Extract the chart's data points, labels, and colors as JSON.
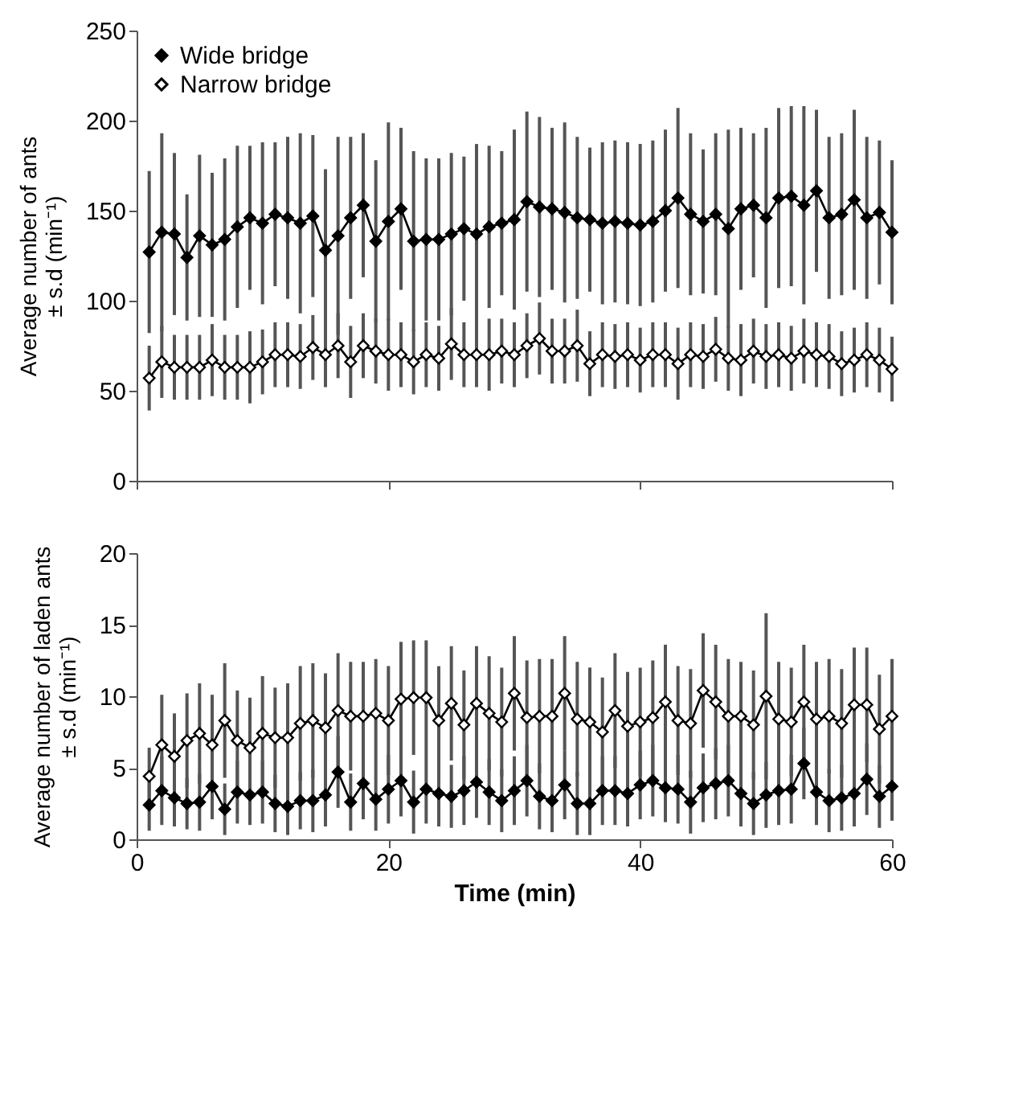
{
  "chart_data": [
    {
      "type": "line",
      "ylabel": "Average number of ants\n± s.d (min⁻¹)",
      "x": [
        1,
        2,
        3,
        4,
        5,
        6,
        7,
        8,
        9,
        10,
        11,
        12,
        13,
        14,
        15,
        16,
        17,
        18,
        19,
        20,
        21,
        22,
        23,
        24,
        25,
        26,
        27,
        28,
        29,
        30,
        31,
        32,
        33,
        34,
        35,
        36,
        37,
        38,
        39,
        40,
        41,
        42,
        43,
        44,
        45,
        46,
        47,
        48,
        49,
        50,
        51,
        52,
        53,
        54,
        55,
        56,
        57,
        58,
        59,
        60
      ],
      "xlim": [
        0,
        60
      ],
      "xticks": [
        0,
        20,
        40,
        60
      ],
      "ylim": [
        0,
        250
      ],
      "yticks": [
        0,
        50,
        100,
        150,
        200,
        250
      ],
      "tick_labels": "y",
      "grid": false,
      "legend": "top left",
      "marker": "diamond",
      "line_style": "solid",
      "series": [
        {
          "name": "Wide bridge",
          "color": "#000000",
          "values": [
            127,
            138,
            137,
            124,
            136,
            131,
            134,
            141,
            146,
            143,
            148,
            146,
            143,
            147,
            128,
            136,
            146,
            153,
            133,
            144,
            151,
            133,
            134,
            134,
            137,
            140,
            137,
            141,
            143,
            145,
            155,
            152,
            151,
            149,
            146,
            145,
            143,
            144,
            143,
            142,
            144,
            150,
            157,
            148,
            144,
            148,
            140,
            151,
            153,
            146,
            157,
            158,
            153,
            161,
            146,
            148,
            156,
            146,
            149,
            138
          ],
          "errors": [
            45,
            55,
            45,
            35,
            45,
            40,
            45,
            45,
            40,
            45,
            40,
            45,
            50,
            45,
            45,
            55,
            45,
            40,
            45,
            55,
            45,
            50,
            45,
            45,
            45,
            40,
            50,
            45,
            40,
            50,
            50,
            50,
            45,
            50,
            45,
            40,
            45,
            45,
            45,
            45,
            45,
            45,
            50,
            45,
            40,
            45,
            55,
            45,
            40,
            50,
            50,
            50,
            55,
            45,
            45,
            45,
            50,
            45,
            40,
            40
          ]
        },
        {
          "name": "Narrow bridge",
          "color": "#000000",
          "values": [
            57,
            66,
            63,
            63,
            63,
            67,
            63,
            63,
            63,
            66,
            70,
            70,
            69,
            74,
            70,
            75,
            66,
            75,
            72,
            70,
            70,
            66,
            70,
            68,
            76,
            70,
            70,
            70,
            72,
            70,
            75,
            79,
            72,
            72,
            75,
            65,
            70,
            69,
            70,
            67,
            70,
            70,
            65,
            70,
            69,
            73,
            68,
            67,
            72,
            69,
            70,
            68,
            72,
            70,
            69,
            65,
            67,
            70,
            67,
            62
          ],
          "errors": [
            18,
            20,
            18,
            18,
            18,
            20,
            18,
            18,
            20,
            18,
            18,
            18,
            18,
            18,
            18,
            18,
            20,
            18,
            18,
            20,
            18,
            18,
            18,
            18,
            20,
            18,
            18,
            20,
            18,
            18,
            18,
            20,
            18,
            18,
            20,
            18,
            18,
            18,
            18,
            18,
            18,
            18,
            20,
            18,
            18,
            18,
            18,
            20,
            18,
            18,
            18,
            18,
            18,
            18,
            18,
            18,
            18,
            18,
            18,
            18
          ]
        }
      ]
    },
    {
      "type": "line",
      "ylabel": "Average number of laden ants\n± s.d (min⁻¹)",
      "xlabel": "Time (min)",
      "x": [
        1,
        2,
        3,
        4,
        5,
        6,
        7,
        8,
        9,
        10,
        11,
        12,
        13,
        14,
        15,
        16,
        17,
        18,
        19,
        20,
        21,
        22,
        23,
        24,
        25,
        26,
        27,
        28,
        29,
        30,
        31,
        32,
        33,
        34,
        35,
        36,
        37,
        38,
        39,
        40,
        41,
        42,
        43,
        44,
        45,
        46,
        47,
        48,
        49,
        50,
        51,
        52,
        53,
        54,
        55,
        56,
        57,
        58,
        59,
        60
      ],
      "xlim": [
        0,
        60
      ],
      "xticks": [
        0,
        20,
        40,
        60
      ],
      "ylim": [
        0,
        20
      ],
      "yticks": [
        0,
        5,
        10,
        15,
        20
      ],
      "grid": false,
      "marker": "diamond",
      "line_style": "solid",
      "series": [
        {
          "color": "#000000",
          "values": [
            2.4,
            3.4,
            2.9,
            2.5,
            2.6,
            3.7,
            2.1,
            3.3,
            3.1,
            3.3,
            2.5,
            2.3,
            2.7,
            2.7,
            3.1,
            4.7,
            2.6,
            3.9,
            2.8,
            3.5,
            4.1,
            2.6,
            3.5,
            3.2,
            3.0,
            3.4,
            4.0,
            3.3,
            2.7,
            3.4,
            4.1,
            3.0,
            2.7,
            3.8,
            2.5,
            2.5,
            3.4,
            3.4,
            3.2,
            3.8,
            4.1,
            3.6,
            3.5,
            2.6,
            3.6,
            3.9,
            4.1,
            3.2,
            2.5,
            3.1,
            3.4,
            3.5,
            5.3,
            3.3,
            2.7,
            2.9,
            3.2,
            4.2,
            3.0,
            3.7
          ],
          "errors": [
            1.8,
            2.4,
            2.0,
            1.8,
            2.0,
            2.3,
            1.8,
            2.2,
            2.1,
            2.2,
            2.0,
            2.0,
            2.0,
            2.2,
            2.2,
            2.5,
            2.0,
            2.5,
            2.2,
            2.4,
            2.5,
            2.2,
            2.4,
            2.3,
            2.2,
            2.4,
            2.5,
            2.3,
            2.2,
            2.4,
            2.5,
            2.3,
            2.2,
            2.4,
            2.2,
            2.2,
            2.4,
            2.4,
            2.3,
            2.4,
            2.5,
            2.4,
            2.4,
            2.2,
            2.4,
            2.5,
            2.5,
            2.3,
            2.2,
            2.3,
            2.4,
            2.4,
            2.5,
            2.3,
            2.2,
            2.3,
            2.3,
            2.5,
            2.2,
            2.4
          ]
        },
        {
          "color": "#000000",
          "values": [
            4.4,
            6.6,
            5.8,
            6.9,
            7.4,
            6.6,
            8.3,
            6.9,
            6.4,
            7.4,
            7.1,
            7.1,
            8.1,
            8.3,
            7.8,
            9.0,
            8.6,
            8.6,
            8.8,
            8.3,
            9.8,
            9.9,
            9.9,
            8.3,
            9.5,
            8.0,
            9.5,
            8.8,
            8.2,
            10.2,
            8.5,
            8.6,
            8.6,
            10.2,
            8.4,
            8.2,
            7.5,
            9.0,
            7.9,
            8.2,
            8.5,
            9.6,
            8.3,
            8.1,
            10.4,
            9.6,
            8.6,
            8.6,
            8.0,
            10.0,
            8.4,
            8.2,
            9.6,
            8.4,
            8.6,
            8.1,
            9.4,
            9.4,
            7.7,
            8.6
          ],
          "errors": [
            2.0,
            3.5,
            3.0,
            3.3,
            3.5,
            3.5,
            4.0,
            3.5,
            3.5,
            4.0,
            3.5,
            3.8,
            4.0,
            4.0,
            3.8,
            4.0,
            3.8,
            3.8,
            3.8,
            3.8,
            4.0,
            4.0,
            4.0,
            3.8,
            4.0,
            3.8,
            4.0,
            4.0,
            3.8,
            4.0,
            4.0,
            4.0,
            4.0,
            4.0,
            4.0,
            3.8,
            3.8,
            4.0,
            3.8,
            3.8,
            4.0,
            4.0,
            3.8,
            3.8,
            4.0,
            4.0,
            4.0,
            3.8,
            3.8,
            5.8,
            4.0,
            3.8,
            4.0,
            4.0,
            4.0,
            3.8,
            4.0,
            4.0,
            3.8,
            4.0
          ]
        }
      ]
    }
  ]
}
